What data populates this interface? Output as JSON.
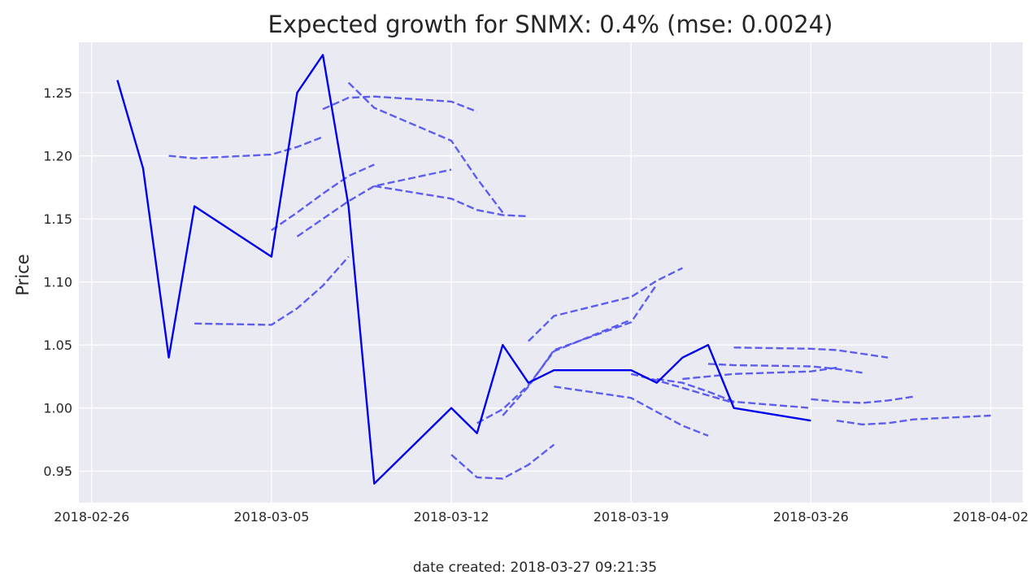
{
  "chart_data": {
    "type": "line",
    "title": "Expected growth for SNMX: 0.4% (mse: 0.0024)",
    "xlabel": "",
    "ylabel": "Price",
    "footer": "date created: 2018-03-27 09:21:35",
    "ylim": [
      0.925,
      1.29
    ],
    "xlim": [
      "2018-02-25T12:00",
      "2018-04-03T06:00"
    ],
    "grid": true,
    "x_ticks": [
      "2018-02-26",
      "2018-03-05",
      "2018-03-12",
      "2018-03-19",
      "2018-03-26",
      "2018-04-02"
    ],
    "y_ticks": [
      "0.95",
      "1.00",
      "1.05",
      "1.10",
      "1.15",
      "1.20",
      "1.25"
    ],
    "colors": {
      "actual": "#0000ee",
      "forecast": "#5555ee",
      "background": "#eaeaf2"
    },
    "actual": {
      "x": [
        "2018-02-27",
        "2018-02-28",
        "2018-03-01",
        "2018-03-02",
        "2018-03-05",
        "2018-03-06",
        "2018-03-07",
        "2018-03-08",
        "2018-03-09",
        "2018-03-12",
        "2018-03-13",
        "2018-03-14",
        "2018-03-15",
        "2018-03-16",
        "2018-03-19",
        "2018-03-20",
        "2018-03-21",
        "2018-03-22",
        "2018-03-23",
        "2018-03-26"
      ],
      "y": [
        1.26,
        1.19,
        1.04,
        1.16,
        1.12,
        1.25,
        1.28,
        1.16,
        0.94,
        1.0,
        0.98,
        1.05,
        1.02,
        1.03,
        1.03,
        1.02,
        1.04,
        1.05,
        1.0,
        0.99
      ]
    },
    "forecasts": [
      {
        "x": [
          "2018-03-01",
          "2018-03-02",
          "2018-03-05",
          "2018-03-06",
          "2018-03-07"
        ],
        "y": [
          1.2,
          1.198,
          1.201,
          1.207,
          1.215
        ]
      },
      {
        "x": [
          "2018-03-02",
          "2018-03-05",
          "2018-03-06",
          "2018-03-07",
          "2018-03-08"
        ],
        "y": [
          1.067,
          1.066,
          1.079,
          1.097,
          1.12
        ]
      },
      {
        "x": [
          "2018-03-05",
          "2018-03-06",
          "2018-03-07",
          "2018-03-08",
          "2018-03-09"
        ],
        "y": [
          1.141,
          1.155,
          1.17,
          1.184,
          1.193
        ]
      },
      {
        "x": [
          "2018-03-06",
          "2018-03-07",
          "2018-03-08",
          "2018-03-09",
          "2018-03-12"
        ],
        "y": [
          1.136,
          1.15,
          1.164,
          1.176,
          1.189
        ]
      },
      {
        "x": [
          "2018-03-07",
          "2018-03-08",
          "2018-03-09",
          "2018-03-12",
          "2018-03-13"
        ],
        "y": [
          1.237,
          1.246,
          1.247,
          1.243,
          1.235
        ]
      },
      {
        "x": [
          "2018-03-08",
          "2018-03-09",
          "2018-03-12",
          "2018-03-13",
          "2018-03-14"
        ],
        "y": [
          1.258,
          1.238,
          1.212,
          1.182,
          1.155
        ]
      },
      {
        "x": [
          "2018-03-09",
          "2018-03-12",
          "2018-03-13",
          "2018-03-14",
          "2018-03-15"
        ],
        "y": [
          1.176,
          1.166,
          1.157,
          1.153,
          1.152
        ]
      },
      {
        "x": [
          "2018-03-12",
          "2018-03-13",
          "2018-03-14",
          "2018-03-15",
          "2018-03-16"
        ],
        "y": [
          0.963,
          0.945,
          0.944,
          0.955,
          0.971
        ]
      },
      {
        "x": [
          "2018-03-13",
          "2018-03-14",
          "2018-03-15",
          "2018-03-16",
          "2018-03-19"
        ],
        "y": [
          0.988,
          0.999,
          1.018,
          1.045,
          1.07
        ]
      },
      {
        "x": [
          "2018-03-14",
          "2018-03-15",
          "2018-03-16",
          "2018-03-19",
          "2018-03-20"
        ],
        "y": [
          0.994,
          1.017,
          1.046,
          1.068,
          1.098
        ]
      },
      {
        "x": [
          "2018-03-15",
          "2018-03-16",
          "2018-03-19",
          "2018-03-20",
          "2018-03-21"
        ],
        "y": [
          1.053,
          1.073,
          1.088,
          1.101,
          1.111
        ]
      },
      {
        "x": [
          "2018-03-16",
          "2018-03-19",
          "2018-03-20",
          "2018-03-21",
          "2018-03-22"
        ],
        "y": [
          1.017,
          1.008,
          0.997,
          0.986,
          0.978
        ]
      },
      {
        "x": [
          "2018-03-19",
          "2018-03-20",
          "2018-03-21",
          "2018-03-22",
          "2018-03-23"
        ],
        "y": [
          1.027,
          1.022,
          1.016,
          1.01,
          1.004
        ]
      },
      {
        "x": [
          "2018-03-20",
          "2018-03-21",
          "2018-03-22",
          "2018-03-23",
          "2018-03-26"
        ],
        "y": [
          1.023,
          1.02,
          1.013,
          1.005,
          1.0
        ]
      },
      {
        "x": [
          "2018-03-21",
          "2018-03-22",
          "2018-03-23",
          "2018-03-26",
          "2018-03-27"
        ],
        "y": [
          1.023,
          1.025,
          1.027,
          1.029,
          1.032
        ]
      },
      {
        "x": [
          "2018-03-22",
          "2018-03-23",
          "2018-03-26",
          "2018-03-27",
          "2018-03-28"
        ],
        "y": [
          1.035,
          1.034,
          1.033,
          1.031,
          1.028
        ]
      },
      {
        "x": [
          "2018-03-23",
          "2018-03-26",
          "2018-03-27",
          "2018-03-28",
          "2018-03-29"
        ],
        "y": [
          1.048,
          1.047,
          1.046,
          1.043,
          1.04
        ]
      },
      {
        "x": [
          "2018-03-26",
          "2018-03-27",
          "2018-03-28",
          "2018-03-29",
          "2018-03-30"
        ],
        "y": [
          1.007,
          1.005,
          1.004,
          1.006,
          1.009
        ]
      },
      {
        "x": [
          "2018-03-27",
          "2018-03-28",
          "2018-03-29",
          "2018-03-30",
          "2018-04-02"
        ],
        "y": [
          0.99,
          0.987,
          0.988,
          0.991,
          0.994
        ]
      }
    ]
  }
}
